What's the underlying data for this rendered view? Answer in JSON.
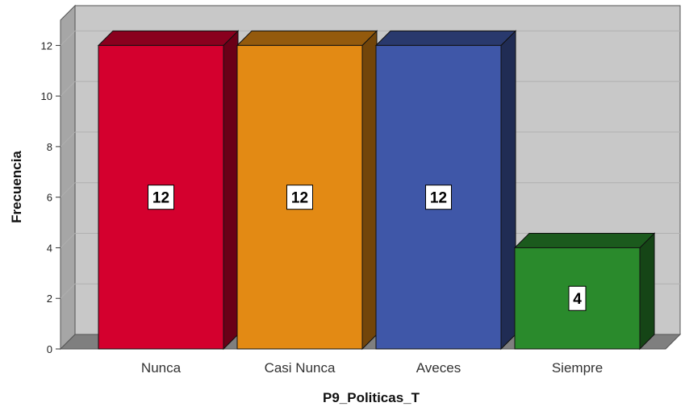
{
  "chart_data": {
    "type": "bar",
    "style": "3d",
    "categories": [
      "Nunca",
      "Casi Nunca",
      "Aveces",
      "Siempre"
    ],
    "values": [
      12,
      12,
      12,
      4
    ],
    "colors": [
      "#d4002e",
      "#e38a14",
      "#3f57a8",
      "#2a8a2c"
    ],
    "data_labels": [
      "12",
      "12",
      "12",
      "4"
    ],
    "xlabel": "P9_Politicas_T",
    "ylabel": "Frecuencia",
    "ylim": [
      0,
      13
    ],
    "yticks": [
      0,
      2,
      4,
      6,
      8,
      10,
      12
    ],
    "grid": true,
    "legend": "none",
    "background_color": "#c8c8c8"
  }
}
